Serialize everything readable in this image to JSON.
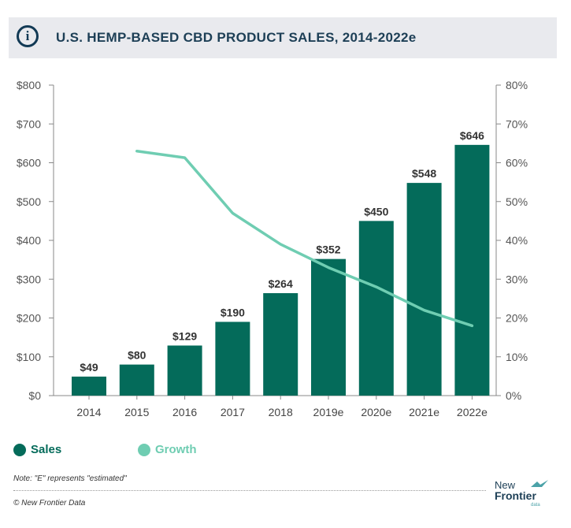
{
  "header": {
    "icon": "info-icon",
    "icon_glyph": "i",
    "title": "U.S. HEMP-BASED CBD PRODUCT SALES, 2014-2022e"
  },
  "chart_data": {
    "type": "bar",
    "categories": [
      "2014",
      "2015",
      "2016",
      "2017",
      "2018",
      "2019e",
      "2020e",
      "2021e",
      "2022e"
    ],
    "series": [
      {
        "name": "Sales",
        "type": "bar",
        "axis": "left",
        "color": "#046b5a",
        "values": [
          49,
          80,
          129,
          190,
          264,
          352,
          450,
          548,
          646
        ],
        "labels": [
          "$49",
          "$80",
          "$129",
          "$190",
          "$264",
          "$352",
          "$450",
          "$548",
          "$646"
        ]
      },
      {
        "name": "Growth",
        "type": "line",
        "axis": "right",
        "color": "#6fcdb2",
        "values": [
          null,
          63,
          61.3,
          47,
          39,
          33,
          28,
          22,
          18
        ]
      }
    ],
    "y_left": {
      "ylim": [
        0,
        800
      ],
      "ticks": [
        0,
        100,
        200,
        300,
        400,
        500,
        600,
        700,
        800
      ],
      "tick_labels": [
        "$0",
        "$100",
        "$200",
        "$300",
        "$400",
        "$500",
        "$600",
        "$700",
        "$800"
      ]
    },
    "y_right": {
      "ylim": [
        0,
        80
      ],
      "ticks": [
        0,
        10,
        20,
        30,
        40,
        50,
        60,
        70,
        80
      ],
      "tick_labels": [
        "0%",
        "10%",
        "20%",
        "30%",
        "40%",
        "50%",
        "60%",
        "70%",
        "80%"
      ]
    },
    "grid": false,
    "legend_position": "bottom-left"
  },
  "legend": {
    "sales_label": "Sales",
    "growth_label": "Growth"
  },
  "footer": {
    "note": "Note: \"E\" represents \"estimated\"",
    "copyright": "© New Frontier Data"
  },
  "logo": {
    "line1": "New",
    "line2": "Frontier",
    "line3": "data",
    "icon": "frontier-bird-logo-icon"
  }
}
